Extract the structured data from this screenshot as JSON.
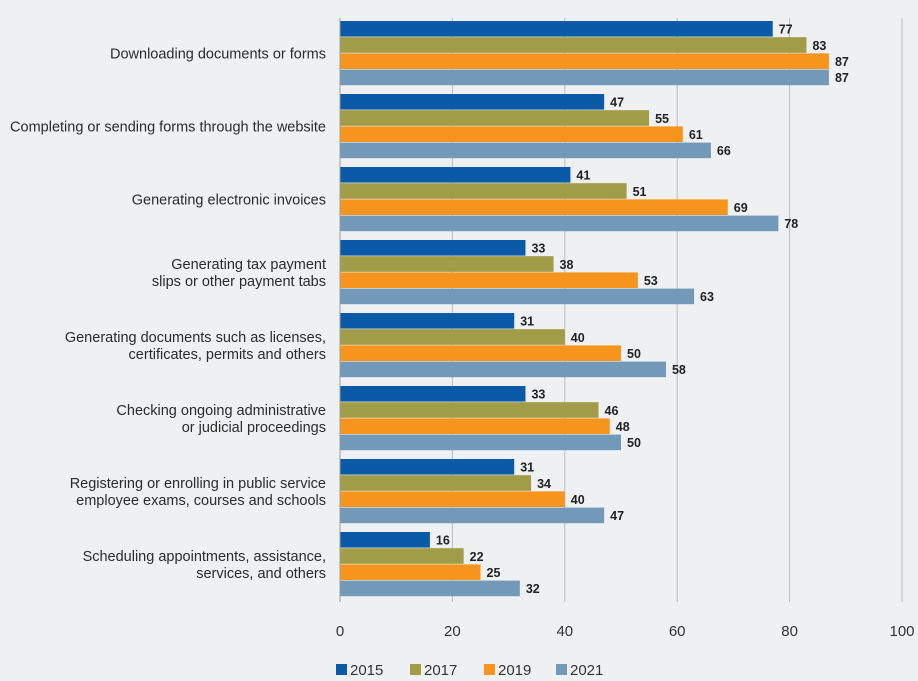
{
  "chart_data": {
    "type": "bar",
    "orientation": "horizontal",
    "categories": [
      [
        "Downloading documents or forms"
      ],
      [
        "Completing or sending forms through the website"
      ],
      [
        "Generating electronic invoices"
      ],
      [
        "Generating tax payment",
        "slips or other payment tabs"
      ],
      [
        "Generating documents such as licenses,",
        "certificates, permits and others"
      ],
      [
        "Checking ongoing administrative",
        "or judicial proceedings"
      ],
      [
        "Registering or enrolling in public service",
        "employee exams, courses and schools"
      ],
      [
        "Scheduling appointments, assistance,",
        "services, and others"
      ]
    ],
    "series": [
      {
        "name": "2015",
        "color": "#0a5aa8",
        "values": [
          77,
          47,
          41,
          33,
          31,
          33,
          31,
          16
        ]
      },
      {
        "name": "2017",
        "color": "#a09c48",
        "values": [
          83,
          55,
          51,
          38,
          40,
          46,
          34,
          22
        ]
      },
      {
        "name": "2019",
        "color": "#f7941d",
        "values": [
          87,
          61,
          69,
          53,
          50,
          48,
          40,
          25
        ]
      },
      {
        "name": "2021",
        "color": "#7399b8",
        "values": [
          87,
          66,
          78,
          63,
          58,
          50,
          47,
          32
        ]
      }
    ],
    "xlim": [
      0,
      100
    ],
    "xticks": [
      0,
      20,
      40,
      60,
      80,
      100
    ],
    "grid": true,
    "legend": "bottom"
  }
}
